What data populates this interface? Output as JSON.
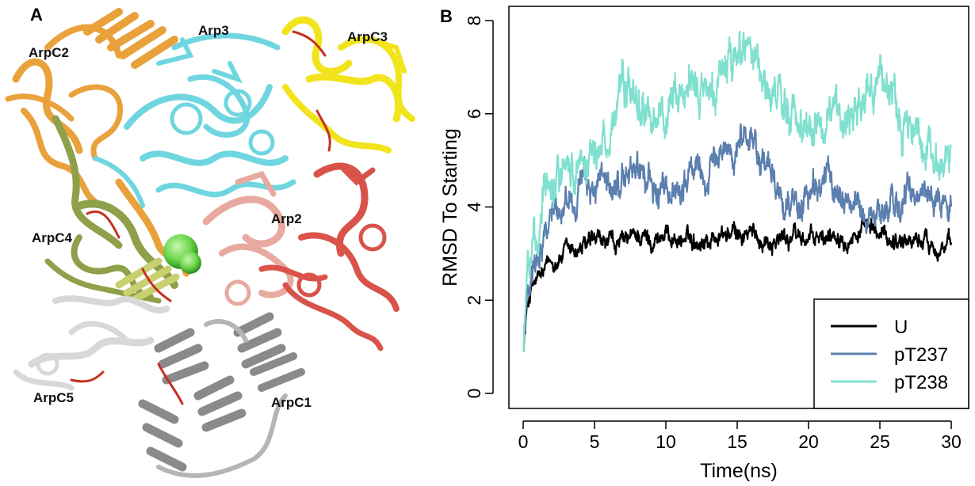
{
  "panel_a": {
    "letter": "A",
    "labels": {
      "arpc2": "ArpC2",
      "arp3": "Arp3",
      "arpc3": "ArpC3",
      "arp2": "Arp2",
      "arpc4": "ArpC4",
      "arpc5": "ArpC5",
      "arpc1": "ArpC1"
    },
    "colors": {
      "arpc2": "#e9a23b",
      "arp3": "#6fd6e0",
      "arpc3": "#f2e41c",
      "arp2_light": "#e8aaa0",
      "arp2_dark": "#d9534a",
      "arpc4": "#8fa04a",
      "arpc5": "#d8d8d8",
      "arpc1": "#8a8a8a",
      "ligand": "#6ad64a",
      "loop": "#c43020"
    }
  },
  "chart_data": {
    "type": "line",
    "panel_letter": "B",
    "title": "",
    "xlabel": "Time(ns)",
    "ylabel": "RMSD To Starting",
    "xlim": [
      0,
      30
    ],
    "ylim": [
      0,
      8
    ],
    "xticks": [
      0,
      5,
      10,
      15,
      20,
      25,
      30
    ],
    "yticks": [
      0,
      2,
      4,
      6,
      8
    ],
    "grid": false,
    "legend_position": "bottom-right",
    "series": [
      {
        "name": "U",
        "color": "#000000",
        "x": [
          0,
          0.3,
          0.6,
          1,
          1.5,
          2,
          3,
          4,
          5,
          6,
          7,
          8,
          9,
          10,
          11,
          12,
          13,
          14,
          15,
          16,
          17,
          18,
          19,
          20,
          21,
          22,
          23,
          24,
          25,
          26,
          27,
          28,
          29,
          30
        ],
        "values": [
          0.9,
          1.9,
          2.3,
          2.4,
          2.6,
          2.8,
          3.0,
          3.1,
          3.2,
          3.2,
          3.2,
          3.4,
          3.3,
          3.4,
          3.3,
          3.3,
          3.3,
          3.4,
          3.4,
          3.4,
          3.3,
          3.3,
          3.4,
          3.3,
          3.3,
          3.5,
          3.4,
          3.5,
          3.4,
          3.3,
          3.3,
          3.3,
          3.2,
          3.1
        ]
      },
      {
        "name": "pT237",
        "color": "#5b7fae",
        "x": [
          0,
          0.3,
          0.6,
          1,
          1.5,
          2,
          3,
          4,
          5,
          6,
          7,
          8,
          9,
          10,
          11,
          12,
          13,
          14,
          15,
          16,
          17,
          18,
          19,
          20,
          21,
          22,
          23,
          24,
          25,
          26,
          27,
          28,
          29,
          30
        ],
        "values": [
          0.9,
          2.2,
          2.7,
          3.1,
          3.6,
          4.0,
          4.2,
          4.4,
          4.5,
          4.3,
          4.6,
          4.9,
          4.4,
          4.2,
          4.5,
          4.8,
          4.6,
          5.2,
          5.4,
          5.6,
          4.8,
          4.3,
          4.0,
          4.2,
          4.6,
          4.4,
          4.1,
          3.8,
          3.9,
          4.0,
          4.2,
          4.3,
          4.2,
          4.0
        ]
      },
      {
        "name": "pT238",
        "color": "#80e0cf",
        "x": [
          0,
          0.3,
          0.6,
          1,
          1.5,
          2,
          3,
          4,
          5,
          6,
          7,
          8,
          9,
          10,
          11,
          12,
          13,
          14,
          15,
          16,
          17,
          18,
          19,
          20,
          21,
          22,
          23,
          24,
          25,
          26,
          27,
          28,
          29,
          30
        ],
        "values": [
          0.9,
          2.4,
          3.0,
          3.6,
          4.4,
          4.9,
          4.8,
          5.0,
          5.1,
          5.6,
          6.5,
          6.3,
          6.0,
          5.8,
          6.2,
          6.6,
          6.3,
          6.9,
          7.3,
          7.6,
          6.5,
          6.2,
          6.0,
          5.8,
          5.9,
          6.0,
          6.2,
          6.5,
          6.8,
          6.2,
          5.6,
          5.4,
          5.2,
          4.9
        ]
      }
    ]
  }
}
